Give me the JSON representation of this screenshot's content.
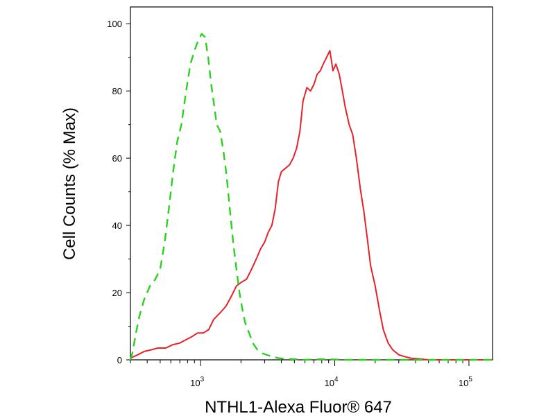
{
  "chart_data": {
    "type": "line",
    "title": "",
    "xlabel": "NTHL1-Alexa Fluor® 647",
    "ylabel": "Cell Counts (% Max)",
    "x_scale": "log",
    "xlim": [
      300,
      150000
    ],
    "ylim": [
      0,
      105
    ],
    "grid": false,
    "legend": "none",
    "x_ticks": [
      {
        "value": 1000,
        "base": "10",
        "exp": "3"
      },
      {
        "value": 10000,
        "base": "10",
        "exp": "4"
      },
      {
        "value": 100000,
        "base": "10",
        "exp": "5"
      }
    ],
    "y_ticks": [
      0,
      20,
      40,
      60,
      80,
      100
    ],
    "series": [
      {
        "color": "#e8202a",
        "style": "solid",
        "x": [
          300,
          340,
          380,
          430,
          480,
          550,
          620,
          700,
          780,
          870,
          950,
          1050,
          1150,
          1250,
          1400,
          1550,
          1700,
          1850,
          2000,
          2200,
          2400,
          2600,
          2800,
          3000,
          3200,
          3400,
          3600,
          3800,
          4000,
          4300,
          4600,
          4900,
          5200,
          5500,
          5800,
          6200,
          6600,
          7000,
          7400,
          7800,
          8200,
          8700,
          9200,
          9700,
          10200,
          10800,
          11400,
          12000,
          12800,
          13600,
          14500,
          15500,
          16500,
          17500,
          18500,
          20000,
          21500,
          23000,
          25000,
          27000,
          30000,
          33000,
          37000,
          42000,
          50000,
          60000,
          80000,
          150000
        ],
        "y": [
          0.5,
          1.5,
          2.5,
          3,
          3.5,
          3.5,
          4.5,
          5,
          6,
          7,
          8,
          8,
          9,
          12,
          14,
          16,
          19,
          22,
          23,
          24,
          27,
          30,
          33,
          35,
          38,
          40,
          45,
          53,
          56,
          57,
          58,
          60,
          63,
          68,
          77,
          81,
          80,
          82,
          85,
          86,
          88,
          90,
          92,
          86,
          88,
          85,
          80,
          75,
          70,
          67,
          60,
          51,
          44,
          36,
          28,
          22,
          15,
          9,
          5,
          3,
          1.5,
          1,
          0.5,
          0.3,
          0,
          0,
          0,
          0
        ]
      },
      {
        "color": "#2bd11f",
        "style": "dashed",
        "x": [
          300,
          310,
          330,
          350,
          380,
          420,
          460,
          500,
          540,
          580,
          620,
          670,
          720,
          780,
          840,
          900,
          960,
          1020,
          1080,
          1140,
          1200,
          1260,
          1320,
          1400,
          1480,
          1560,
          1650,
          1750,
          1850,
          1950,
          2050,
          2150,
          2300,
          2450,
          2650,
          2850,
          3100,
          3400,
          3800,
          4300,
          5000,
          6000,
          8000,
          12000,
          20000,
          50000,
          150000
        ],
        "y": [
          0,
          2,
          8,
          13,
          18,
          22,
          24,
          27,
          35,
          45,
          55,
          65,
          70,
          80,
          88,
          92,
          95,
          97,
          96,
          90,
          82,
          76,
          70,
          68,
          62,
          55,
          45,
          35,
          27,
          20,
          15,
          11,
          8,
          5,
          3,
          2,
          1.5,
          1,
          0.5,
          0.3,
          0.2,
          0,
          0.2,
          0,
          0,
          0,
          0
        ]
      }
    ]
  }
}
